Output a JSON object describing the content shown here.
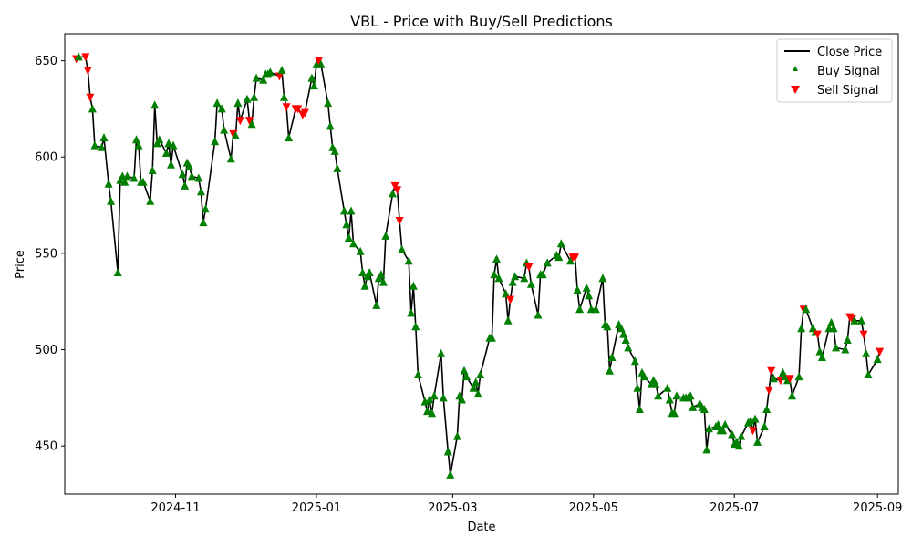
{
  "chart_data": {
    "type": "line",
    "title": "VBL - Price with Buy/Sell Predictions",
    "xlabel": "Date",
    "ylabel": "Price",
    "xlim": [
      "2024-09-14",
      "2025-09-10"
    ],
    "ylim": [
      425,
      664
    ],
    "x_ticks": [
      "2024-11",
      "2025-01",
      "2025-03",
      "2025-05",
      "2025-07",
      "2025-09"
    ],
    "y_ticks": [
      450,
      500,
      550,
      600,
      650
    ],
    "grid": false,
    "legend_position": "top-right",
    "colors": {
      "close": "#000000",
      "buy": "#008000",
      "sell": "#ff0000"
    },
    "series": [
      {
        "name": "Close Price",
        "kind": "line"
      },
      {
        "name": "Buy Signal",
        "kind": "scatter",
        "marker": "triangle-up"
      },
      {
        "name": "Sell Signal",
        "kind": "scatter",
        "marker": "triangle-down"
      }
    ],
    "points": [
      [
        "2024-09-19",
        651,
        "S"
      ],
      [
        "2024-09-20",
        652,
        "B"
      ],
      [
        "2024-09-23",
        652,
        "S"
      ],
      [
        "2024-09-24",
        645,
        "S"
      ],
      [
        "2024-09-25",
        631,
        "S"
      ],
      [
        "2024-09-26",
        625,
        "B"
      ],
      [
        "2024-09-27",
        606,
        "B"
      ],
      [
        "2024-09-30",
        605,
        "B"
      ],
      [
        "2024-10-01",
        610,
        "B"
      ],
      [
        "2024-10-03",
        586,
        "B"
      ],
      [
        "2024-10-04",
        577,
        "B"
      ],
      [
        "2024-10-07",
        540,
        "B"
      ],
      [
        "2024-10-08",
        588,
        "B"
      ],
      [
        "2024-10-09",
        590,
        "B"
      ],
      [
        "2024-10-10",
        587,
        "B"
      ],
      [
        "2024-10-11",
        590,
        "B"
      ],
      [
        "2024-10-14",
        589,
        "B"
      ],
      [
        "2024-10-15",
        609,
        "B"
      ],
      [
        "2024-10-16",
        606,
        "B"
      ],
      [
        "2024-10-17",
        587,
        "B"
      ],
      [
        "2024-10-18",
        587,
        "B"
      ],
      [
        "2024-10-21",
        577,
        "B"
      ],
      [
        "2024-10-22",
        593,
        "B"
      ],
      [
        "2024-10-23",
        627,
        "B"
      ],
      [
        "2024-10-24",
        607,
        "B"
      ],
      [
        "2024-10-25",
        609,
        "B"
      ],
      [
        "2024-10-28",
        602,
        "B"
      ],
      [
        "2024-10-29",
        607,
        "B"
      ],
      [
        "2024-10-30",
        596,
        "B"
      ],
      [
        "2024-10-31",
        606,
        "B"
      ],
      [
        "2024-11-04",
        591,
        "B"
      ],
      [
        "2024-11-05",
        585,
        "B"
      ],
      [
        "2024-11-06",
        597,
        "B"
      ],
      [
        "2024-11-07",
        595,
        "B"
      ],
      [
        "2024-11-08",
        590,
        "B"
      ],
      [
        "2024-11-11",
        589,
        "B"
      ],
      [
        "2024-11-12",
        582,
        "B"
      ],
      [
        "2024-11-13",
        566,
        "B"
      ],
      [
        "2024-11-14",
        573,
        "B"
      ],
      [
        "2024-11-18",
        608,
        "B"
      ],
      [
        "2024-11-19",
        628,
        "B"
      ],
      [
        "2024-11-21",
        625,
        "B"
      ],
      [
        "2024-11-22",
        614,
        "B"
      ],
      [
        "2024-11-25",
        599,
        "B"
      ],
      [
        "2024-11-26",
        612,
        "S"
      ],
      [
        "2024-11-27",
        611,
        "B"
      ],
      [
        "2024-11-28",
        628,
        "B"
      ],
      [
        "2024-11-29",
        619,
        "S"
      ],
      [
        "2024-12-02",
        630,
        "B"
      ],
      [
        "2024-12-03",
        619,
        "S"
      ],
      [
        "2024-12-04",
        617,
        "B"
      ],
      [
        "2024-12-05",
        631,
        "B"
      ],
      [
        "2024-12-06",
        641,
        "B"
      ],
      [
        "2024-12-09",
        640,
        "B"
      ],
      [
        "2024-12-10",
        643,
        "B"
      ],
      [
        "2024-12-11",
        643,
        "B"
      ],
      [
        "2024-12-12",
        644,
        "B"
      ],
      [
        "2024-12-16",
        642,
        "S"
      ],
      [
        "2024-12-17",
        645,
        "B"
      ],
      [
        "2024-12-18",
        631,
        "B"
      ],
      [
        "2024-12-19",
        626,
        "S"
      ],
      [
        "2024-12-20",
        610,
        "B"
      ],
      [
        "2024-12-23",
        625,
        "S"
      ],
      [
        "2024-12-24",
        625,
        "S"
      ],
      [
        "2024-12-26",
        622,
        "S"
      ],
      [
        "2024-12-27",
        623,
        "S"
      ],
      [
        "2024-12-30",
        641,
        "B"
      ],
      [
        "2024-12-31",
        637,
        "B"
      ],
      [
        "2025-01-01",
        648,
        "B"
      ],
      [
        "2025-01-02",
        650,
        "S"
      ],
      [
        "2025-01-03",
        648,
        "B"
      ],
      [
        "2025-01-06",
        628,
        "B"
      ],
      [
        "2025-01-07",
        616,
        "B"
      ],
      [
        "2025-01-08",
        605,
        "B"
      ],
      [
        "2025-01-09",
        603,
        "B"
      ],
      [
        "2025-01-10",
        594,
        "B"
      ],
      [
        "2025-01-13",
        572,
        "B"
      ],
      [
        "2025-01-14",
        565,
        "B"
      ],
      [
        "2025-01-15",
        558,
        "B"
      ],
      [
        "2025-01-16",
        572,
        "B"
      ],
      [
        "2025-01-17",
        555,
        "B"
      ],
      [
        "2025-01-20",
        551,
        "B"
      ],
      [
        "2025-01-21",
        540,
        "B"
      ],
      [
        "2025-01-22",
        533,
        "B"
      ],
      [
        "2025-01-23",
        538,
        "B"
      ],
      [
        "2025-01-24",
        540,
        "B"
      ],
      [
        "2025-01-27",
        523,
        "B"
      ],
      [
        "2025-01-28",
        537,
        "B"
      ],
      [
        "2025-01-29",
        539,
        "B"
      ],
      [
        "2025-01-30",
        535,
        "B"
      ],
      [
        "2025-01-31",
        559,
        "B"
      ],
      [
        "2025-02-03",
        581,
        "B"
      ],
      [
        "2025-02-04",
        585,
        "S"
      ],
      [
        "2025-02-05",
        583,
        "S"
      ],
      [
        "2025-02-06",
        567,
        "S"
      ],
      [
        "2025-02-07",
        552,
        "B"
      ],
      [
        "2025-02-10",
        546,
        "B"
      ],
      [
        "2025-02-11",
        519,
        "B"
      ],
      [
        "2025-02-12",
        533,
        "B"
      ],
      [
        "2025-02-13",
        512,
        "B"
      ],
      [
        "2025-02-14",
        487,
        "B"
      ],
      [
        "2025-02-17",
        473,
        "B"
      ],
      [
        "2025-02-18",
        468,
        "B"
      ],
      [
        "2025-02-19",
        474,
        "B"
      ],
      [
        "2025-02-20",
        467,
        "B"
      ],
      [
        "2025-02-21",
        476,
        "B"
      ],
      [
        "2025-02-24",
        498,
        "B"
      ],
      [
        "2025-02-25",
        475,
        "B"
      ],
      [
        "2025-02-27",
        447,
        "B"
      ],
      [
        "2025-02-28",
        435,
        "B"
      ],
      [
        "2025-03-03",
        455,
        "B"
      ],
      [
        "2025-03-04",
        476,
        "B"
      ],
      [
        "2025-03-05",
        474,
        "B"
      ],
      [
        "2025-03-06",
        489,
        "B"
      ],
      [
        "2025-03-07",
        486,
        "B"
      ],
      [
        "2025-03-10",
        480,
        "B"
      ],
      [
        "2025-03-11",
        483,
        "B"
      ],
      [
        "2025-03-12",
        477,
        "B"
      ],
      [
        "2025-03-13",
        487,
        "B"
      ],
      [
        "2025-03-17",
        506,
        "B"
      ],
      [
        "2025-03-18",
        506,
        "B"
      ],
      [
        "2025-03-19",
        539,
        "B"
      ],
      [
        "2025-03-20",
        547,
        "B"
      ],
      [
        "2025-03-21",
        537,
        "B"
      ],
      [
        "2025-03-24",
        529,
        "B"
      ],
      [
        "2025-03-25",
        515,
        "B"
      ],
      [
        "2025-03-26",
        526,
        "S"
      ],
      [
        "2025-03-27",
        535,
        "B"
      ],
      [
        "2025-03-28",
        538,
        "B"
      ],
      [
        "2025-04-01",
        537,
        "B"
      ],
      [
        "2025-04-02",
        545,
        "B"
      ],
      [
        "2025-04-03",
        543,
        "S"
      ],
      [
        "2025-04-04",
        534,
        "B"
      ],
      [
        "2025-04-07",
        518,
        "B"
      ],
      [
        "2025-04-08",
        539,
        "B"
      ],
      [
        "2025-04-09",
        539,
        "B"
      ],
      [
        "2025-04-11",
        545,
        "B"
      ],
      [
        "2025-04-15",
        549,
        "B"
      ],
      [
        "2025-04-16",
        548,
        "B"
      ],
      [
        "2025-04-17",
        555,
        "B"
      ],
      [
        "2025-04-21",
        546,
        "B"
      ],
      [
        "2025-04-22",
        548,
        "S"
      ],
      [
        "2025-04-23",
        548,
        "S"
      ],
      [
        "2025-04-24",
        531,
        "B"
      ],
      [
        "2025-04-25",
        521,
        "B"
      ],
      [
        "2025-04-28",
        532,
        "B"
      ],
      [
        "2025-04-29",
        528,
        "B"
      ],
      [
        "2025-04-30",
        521,
        "B"
      ],
      [
        "2025-05-02",
        521,
        "B"
      ],
      [
        "2025-05-05",
        537,
        "B"
      ],
      [
        "2025-05-06",
        513,
        "B"
      ],
      [
        "2025-05-07",
        512,
        "B"
      ],
      [
        "2025-05-08",
        489,
        "B"
      ],
      [
        "2025-05-09",
        496,
        "B"
      ],
      [
        "2025-05-12",
        513,
        "B"
      ],
      [
        "2025-05-13",
        511,
        "B"
      ],
      [
        "2025-05-14",
        508,
        "B"
      ],
      [
        "2025-05-15",
        505,
        "B"
      ],
      [
        "2025-05-16",
        501,
        "B"
      ],
      [
        "2025-05-19",
        494,
        "B"
      ],
      [
        "2025-05-20",
        480,
        "B"
      ],
      [
        "2025-05-21",
        469,
        "B"
      ],
      [
        "2025-05-22",
        488,
        "B"
      ],
      [
        "2025-05-23",
        486,
        "B"
      ],
      [
        "2025-05-26",
        482,
        "B"
      ],
      [
        "2025-05-27",
        484,
        "B"
      ],
      [
        "2025-05-28",
        482,
        "B"
      ],
      [
        "2025-05-29",
        476,
        "B"
      ],
      [
        "2025-06-02",
        480,
        "B"
      ],
      [
        "2025-06-03",
        474,
        "B"
      ],
      [
        "2025-06-04",
        467,
        "B"
      ],
      [
        "2025-06-05",
        467,
        "B"
      ],
      [
        "2025-06-06",
        476,
        "B"
      ],
      [
        "2025-06-09",
        475,
        "B"
      ],
      [
        "2025-06-10",
        475,
        "B"
      ],
      [
        "2025-06-11",
        475,
        "B"
      ],
      [
        "2025-06-12",
        476,
        "B"
      ],
      [
        "2025-06-13",
        470,
        "B"
      ],
      [
        "2025-06-16",
        472,
        "B"
      ],
      [
        "2025-06-17",
        470,
        "B"
      ],
      [
        "2025-06-18",
        469,
        "B"
      ],
      [
        "2025-06-19",
        448,
        "B"
      ],
      [
        "2025-06-20",
        459,
        "B"
      ],
      [
        "2025-06-23",
        460,
        "B"
      ],
      [
        "2025-06-24",
        461,
        "B"
      ],
      [
        "2025-06-25",
        458,
        "B"
      ],
      [
        "2025-06-26",
        458,
        "B"
      ],
      [
        "2025-06-27",
        461,
        "B"
      ],
      [
        "2025-06-30",
        456,
        "B"
      ],
      [
        "2025-07-01",
        451,
        "B"
      ],
      [
        "2025-07-02",
        452,
        "B"
      ],
      [
        "2025-07-03",
        450,
        "B"
      ],
      [
        "2025-07-04",
        455,
        "B"
      ],
      [
        "2025-07-07",
        462,
        "B"
      ],
      [
        "2025-07-08",
        463,
        "B"
      ],
      [
        "2025-07-09",
        458,
        "S"
      ],
      [
        "2025-07-10",
        464,
        "B"
      ],
      [
        "2025-07-11",
        452,
        "B"
      ],
      [
        "2025-07-14",
        460,
        "B"
      ],
      [
        "2025-07-15",
        469,
        "B"
      ],
      [
        "2025-07-16",
        479,
        "S"
      ],
      [
        "2025-07-17",
        489,
        "S"
      ],
      [
        "2025-07-18",
        485,
        "B"
      ],
      [
        "2025-07-21",
        484,
        "S"
      ],
      [
        "2025-07-22",
        488,
        "B"
      ],
      [
        "2025-07-23",
        486,
        "B"
      ],
      [
        "2025-07-24",
        484,
        "B"
      ],
      [
        "2025-07-25",
        485,
        "S"
      ],
      [
        "2025-07-26",
        476,
        "B"
      ],
      [
        "2025-07-29",
        486,
        "B"
      ],
      [
        "2025-07-30",
        511,
        "B"
      ],
      [
        "2025-07-31",
        521,
        "S"
      ],
      [
        "2025-08-01",
        521,
        "B"
      ],
      [
        "2025-08-04",
        511,
        "B"
      ],
      [
        "2025-08-05",
        509,
        "B"
      ],
      [
        "2025-08-06",
        508,
        "S"
      ],
      [
        "2025-08-07",
        499,
        "B"
      ],
      [
        "2025-08-08",
        496,
        "B"
      ],
      [
        "2025-08-11",
        511,
        "B"
      ],
      [
        "2025-08-12",
        514,
        "B"
      ],
      [
        "2025-08-13",
        511,
        "B"
      ],
      [
        "2025-08-14",
        501,
        "B"
      ],
      [
        "2025-08-18",
        500,
        "B"
      ],
      [
        "2025-08-19",
        505,
        "B"
      ],
      [
        "2025-08-20",
        517,
        "S"
      ],
      [
        "2025-08-21",
        516,
        "S"
      ],
      [
        "2025-08-22",
        515,
        "B"
      ],
      [
        "2025-08-25",
        515,
        "B"
      ],
      [
        "2025-08-26",
        508,
        "S"
      ],
      [
        "2025-08-27",
        498,
        "B"
      ],
      [
        "2025-08-28",
        487,
        "B"
      ],
      [
        "2025-09-01",
        495,
        "B"
      ],
      [
        "2025-09-02",
        499,
        "S"
      ]
    ]
  }
}
